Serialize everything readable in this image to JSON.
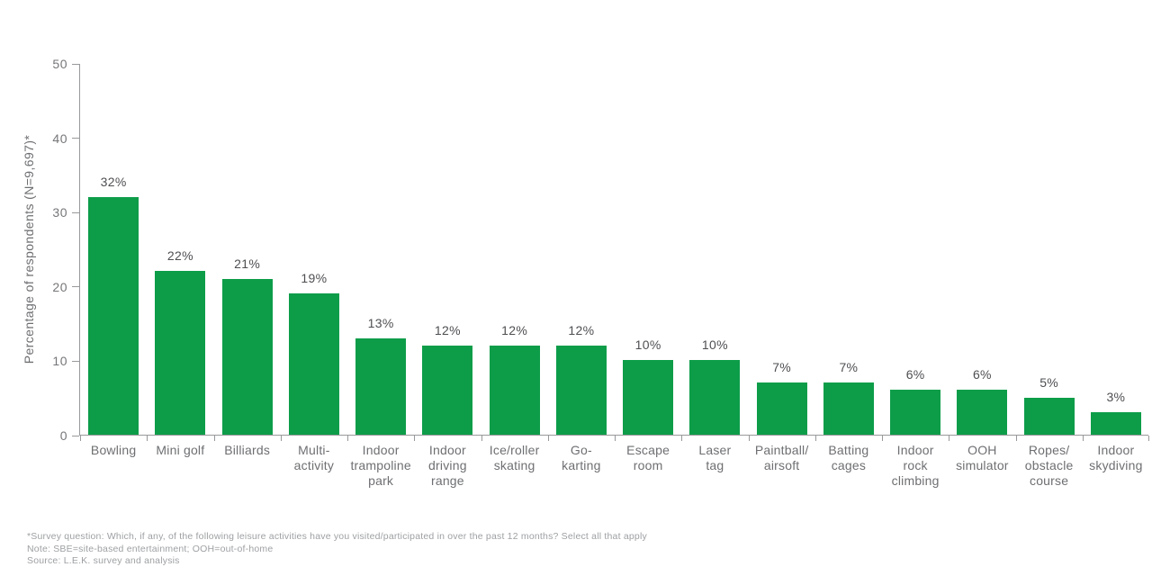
{
  "chart_data": {
    "type": "bar",
    "title": "",
    "xlabel": "",
    "ylabel": "Percentage of respondents (N=9,697)*",
    "ylim": [
      0,
      50
    ],
    "yticks": [
      0,
      10,
      20,
      30,
      40,
      50
    ],
    "grid": false,
    "legend": "none",
    "bar_color": "#0D9D49",
    "categories": [
      "Bowling",
      "Mini golf",
      "Billiards",
      "Multi-\nactivity",
      "Indoor\ntrampoline\npark",
      "Indoor\ndriving\nrange",
      "Ice/roller\nskating",
      "Go-\nkarting",
      "Escape\nroom",
      "Laser\ntag",
      "Paintball/\nairsoft",
      "Batting\ncages",
      "Indoor\nrock\nclimbing",
      "OOH\nsimulator",
      "Ropes/\nobstacle\ncourse",
      "Indoor\nskydiving"
    ],
    "values": [
      32,
      22,
      21,
      19,
      13,
      12,
      12,
      12,
      10,
      10,
      7,
      7,
      6,
      6,
      5,
      3
    ],
    "value_labels": [
      "32%",
      "22%",
      "21%",
      "19%",
      "13%",
      "12%",
      "12%",
      "12%",
      "10%",
      "10%",
      "7%",
      "7%",
      "6%",
      "6%",
      "5%",
      "3%"
    ]
  },
  "colors": {
    "bar": "#0D9D49",
    "axis": "#98999B",
    "tick_text": "#757679",
    "value_text": "#4E4F52",
    "category_text": "#6E6F72",
    "footnote_text": "#9EA0A3",
    "background": "#FFFFFF"
  },
  "footnotes": [
    "*Survey question: Which, if any, of the following leisure activities have you visited/participated in over the past 12 months? Select all that apply",
    "Note: SBE=site-based entertainment; OOH=out-of-home",
    "Source: L.E.K. survey and analysis"
  ]
}
